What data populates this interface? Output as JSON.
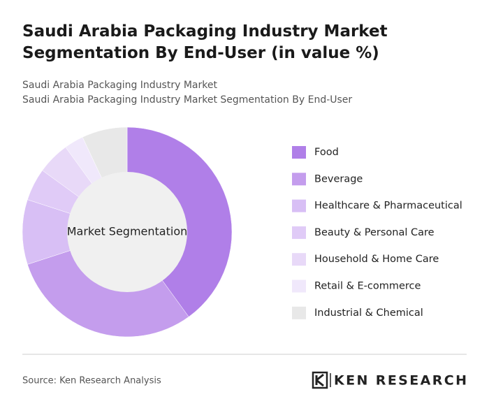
{
  "chart_data": {
    "type": "donut",
    "title": "Saudi Arabia Packaging Industry Market Segmentation By End-User (in value %)",
    "subtitles": [
      "Saudi Arabia Packaging Industry Market",
      "Saudi Arabia Packaging Industry Market Segmentation By End-User"
    ],
    "center_label": "Market Segmentation",
    "categories": [
      "Food",
      "Beverage",
      "Healthcare & Pharmaceutical",
      "Beauty & Personal Care",
      "Household & Home Care",
      "Retail & E-commerce",
      "Industrial & Chemical"
    ],
    "values": [
      40,
      30,
      10,
      5,
      5,
      3,
      7
    ],
    "colors": [
      "#b07fe8",
      "#c49ded",
      "#d8bff5",
      "#e0cbf7",
      "#e8d9f8",
      "#f0e8fb",
      "#e8e8e8"
    ],
    "source": "Source: Ken Research Analysis",
    "logo": "KEN RESEARCH"
  }
}
